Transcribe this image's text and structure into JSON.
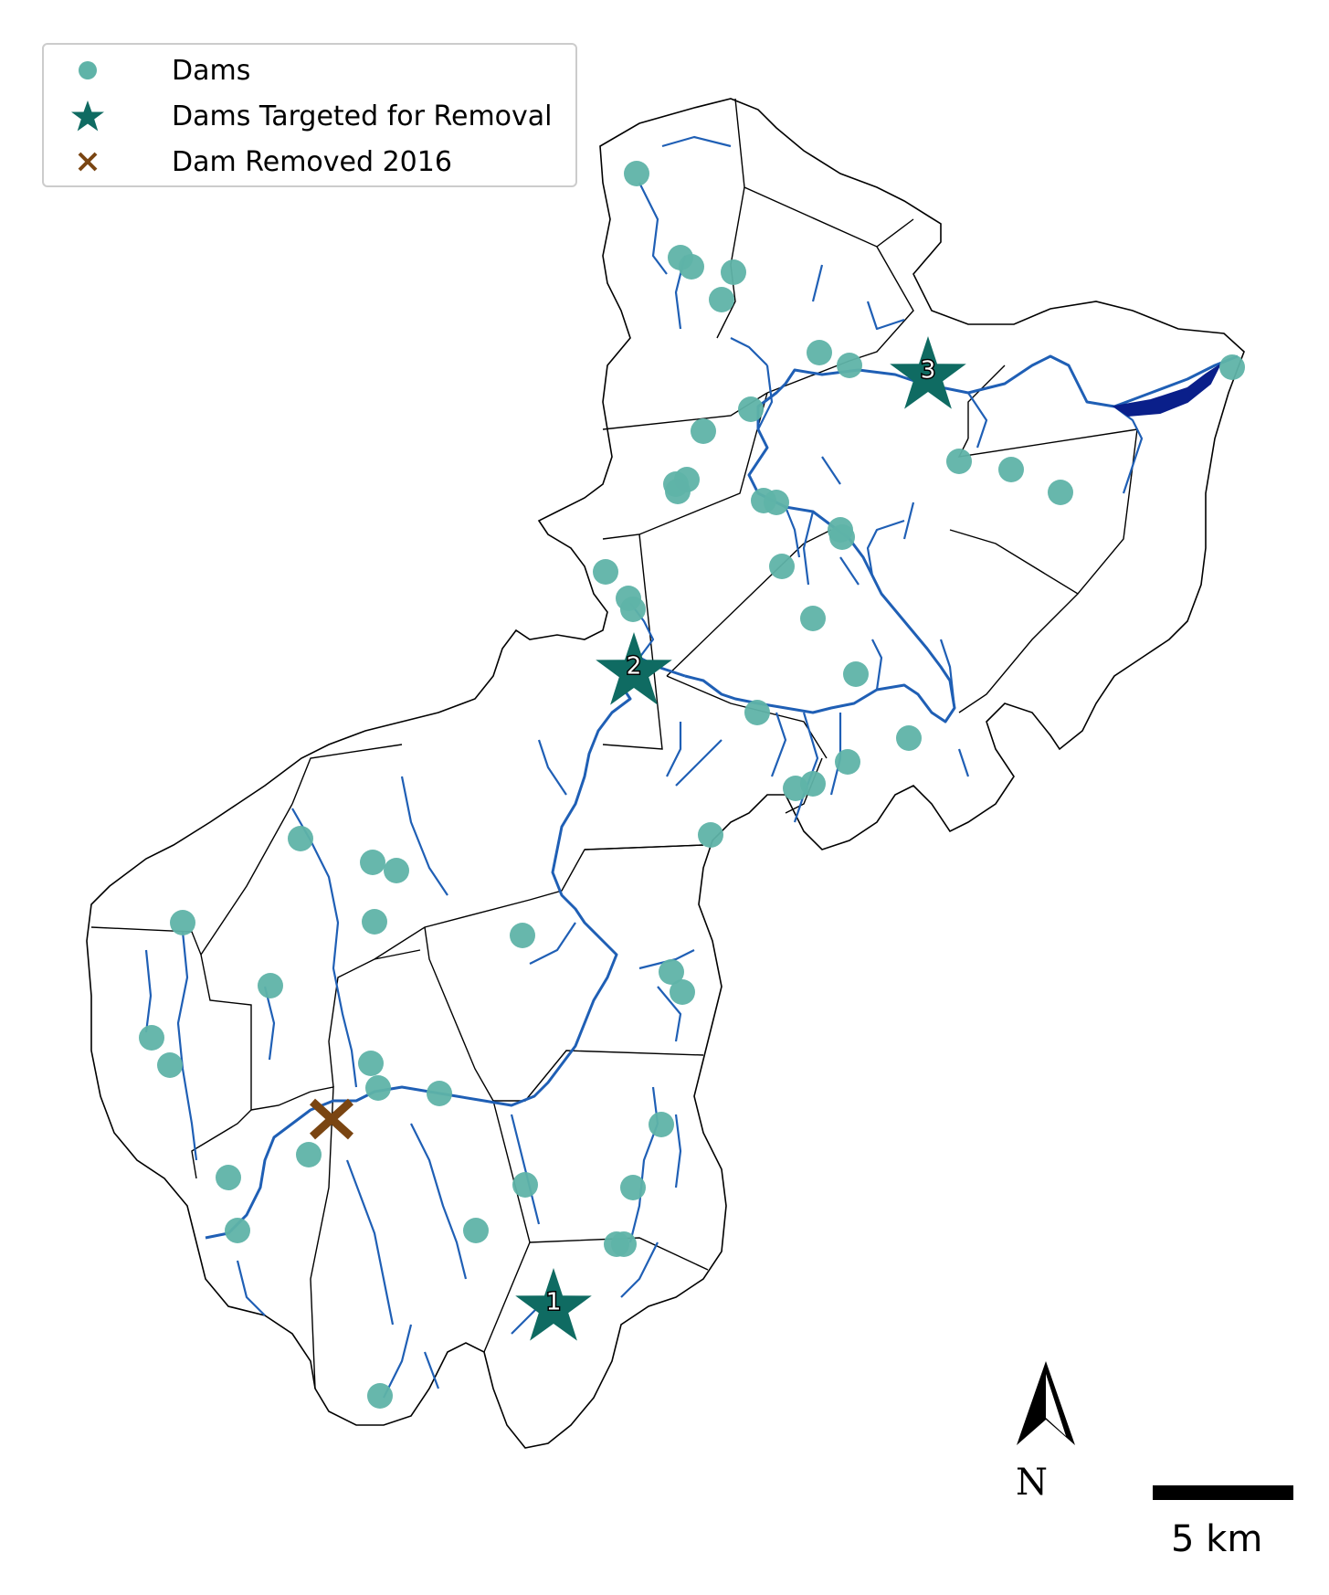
{
  "legend": {
    "dams_label": "Dams",
    "targeted_label": "Dams Targeted for Removal",
    "removed_label": "Dam Removed 2016"
  },
  "colors": {
    "dam": "#5fb3a8",
    "targeted": "#0f6b62",
    "removed": "#7a4512",
    "river": "#1f5fb5",
    "boundary": "#000000",
    "reservoir": "#0a1f8a"
  },
  "north_label": "N",
  "scale_label": "5 km",
  "targeted_dams": [
    {
      "label": "1"
    },
    {
      "label": "2"
    },
    {
      "label": "3"
    }
  ],
  "icons": [
    "north-arrow-icon",
    "dam-dot-icon",
    "star-icon",
    "x-mark-icon"
  ]
}
